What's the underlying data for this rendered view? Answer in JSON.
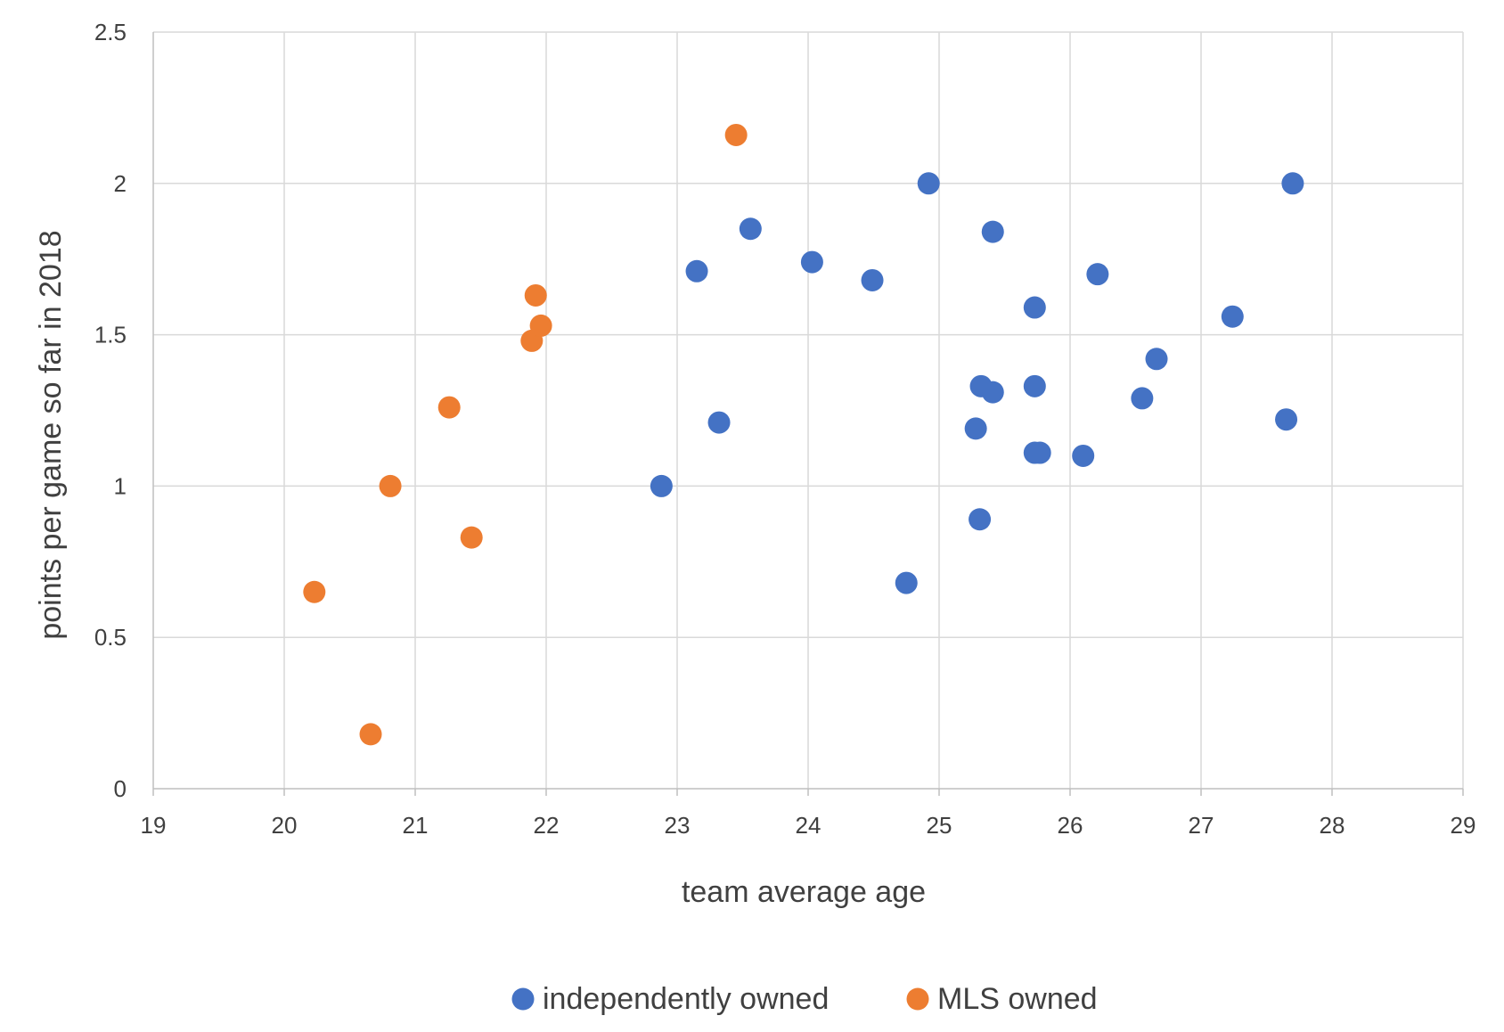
{
  "chart_data": {
    "type": "scatter",
    "xlabel": "team average age",
    "ylabel": "points per game so far in 2018",
    "xlim": [
      19,
      29
    ],
    "ylim": [
      0,
      2.5
    ],
    "x_ticks": [
      "19",
      "20",
      "21",
      "22",
      "23",
      "24",
      "25",
      "26",
      "27",
      "28",
      "29"
    ],
    "y_ticks": [
      "0",
      "0.5",
      "1",
      "1.5",
      "2",
      "2.5"
    ],
    "grid": true,
    "legend_position": "bottom",
    "series": [
      {
        "name": "independently owned",
        "color": "#4472c4",
        "points": [
          [
            22.88,
            1.0
          ],
          [
            23.15,
            1.71
          ],
          [
            23.32,
            1.21
          ],
          [
            23.56,
            1.85
          ],
          [
            24.03,
            1.74
          ],
          [
            24.49,
            1.68
          ],
          [
            24.75,
            0.68
          ],
          [
            24.92,
            2.0
          ],
          [
            25.28,
            1.19
          ],
          [
            25.31,
            0.89
          ],
          [
            25.32,
            1.33
          ],
          [
            25.41,
            1.31
          ],
          [
            25.41,
            1.84
          ],
          [
            25.73,
            1.59
          ],
          [
            25.73,
            1.33
          ],
          [
            25.73,
            1.11
          ],
          [
            25.77,
            1.11
          ],
          [
            26.1,
            1.1
          ],
          [
            26.21,
            1.7
          ],
          [
            26.55,
            1.29
          ],
          [
            26.66,
            1.42
          ],
          [
            27.24,
            1.56
          ],
          [
            27.65,
            1.22
          ],
          [
            27.7,
            2.0
          ]
        ]
      },
      {
        "name": "MLS owned",
        "color": "#ed7d31",
        "points": [
          [
            20.23,
            0.65
          ],
          [
            20.66,
            0.18
          ],
          [
            20.81,
            1.0
          ],
          [
            21.26,
            1.26
          ],
          [
            21.43,
            0.83
          ],
          [
            21.89,
            1.48
          ],
          [
            21.92,
            1.63
          ],
          [
            21.96,
            1.53
          ],
          [
            23.45,
            2.16
          ]
        ]
      }
    ]
  }
}
